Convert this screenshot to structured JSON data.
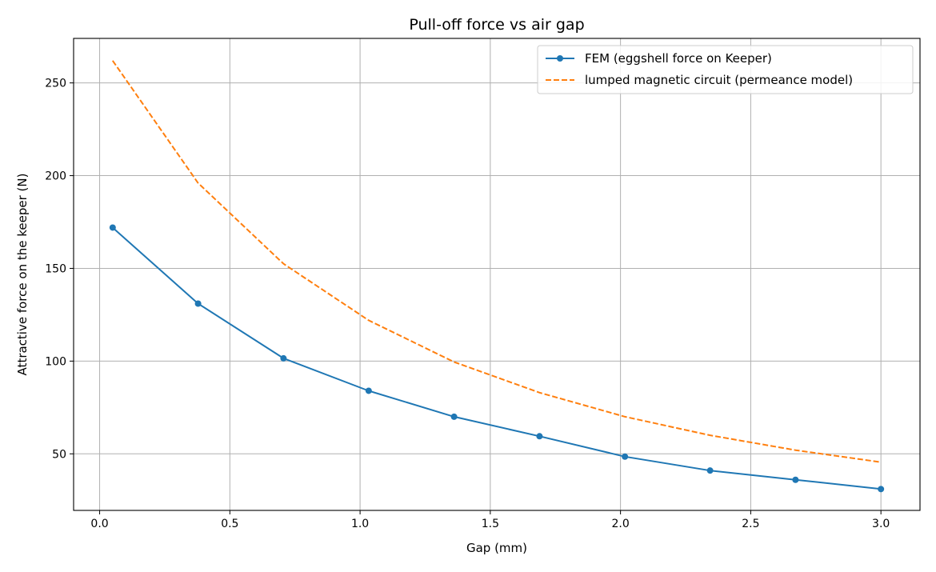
{
  "chart_data": {
    "type": "line",
    "title": "Pull-off force vs air gap",
    "xlabel": "Gap (mm)",
    "ylabel": "Attractive force on the keeper (N)",
    "xlim": [
      -0.1,
      3.15
    ],
    "ylim": [
      19.5,
      274
    ],
    "xticks": [
      0.0,
      0.5,
      1.0,
      1.5,
      2.0,
      2.5,
      3.0
    ],
    "xtick_labels": [
      "0.0",
      "0.5",
      "1.0",
      "1.5",
      "2.0",
      "2.5",
      "3.0"
    ],
    "yticks": [
      50,
      100,
      150,
      200,
      250
    ],
    "ytick_labels": [
      "50",
      "100",
      "150",
      "200",
      "250"
    ],
    "grid": true,
    "legend_position": "top-right",
    "series": [
      {
        "name": "FEM (eggshell force on Keeper)",
        "color": "#1f77b4",
        "style": "solid",
        "marker": "circle",
        "x": [
          0.05,
          0.378,
          0.706,
          1.033,
          1.361,
          1.689,
          2.017,
          2.344,
          2.672,
          3.0
        ],
        "y": [
          172,
          131,
          101.5,
          84,
          70,
          59.5,
          48.5,
          41,
          36,
          31
        ]
      },
      {
        "name": "lumped magnetic circuit (permeance model)",
        "color": "#ff7f0e",
        "style": "dashed",
        "marker": "none",
        "x": [
          0.05,
          0.378,
          0.706,
          1.033,
          1.361,
          1.689,
          2.017,
          2.344,
          2.672,
          3.0
        ],
        "y": [
          262,
          196,
          152.5,
          122,
          99.5,
          83,
          70,
          60,
          52,
          45.5
        ]
      }
    ]
  }
}
